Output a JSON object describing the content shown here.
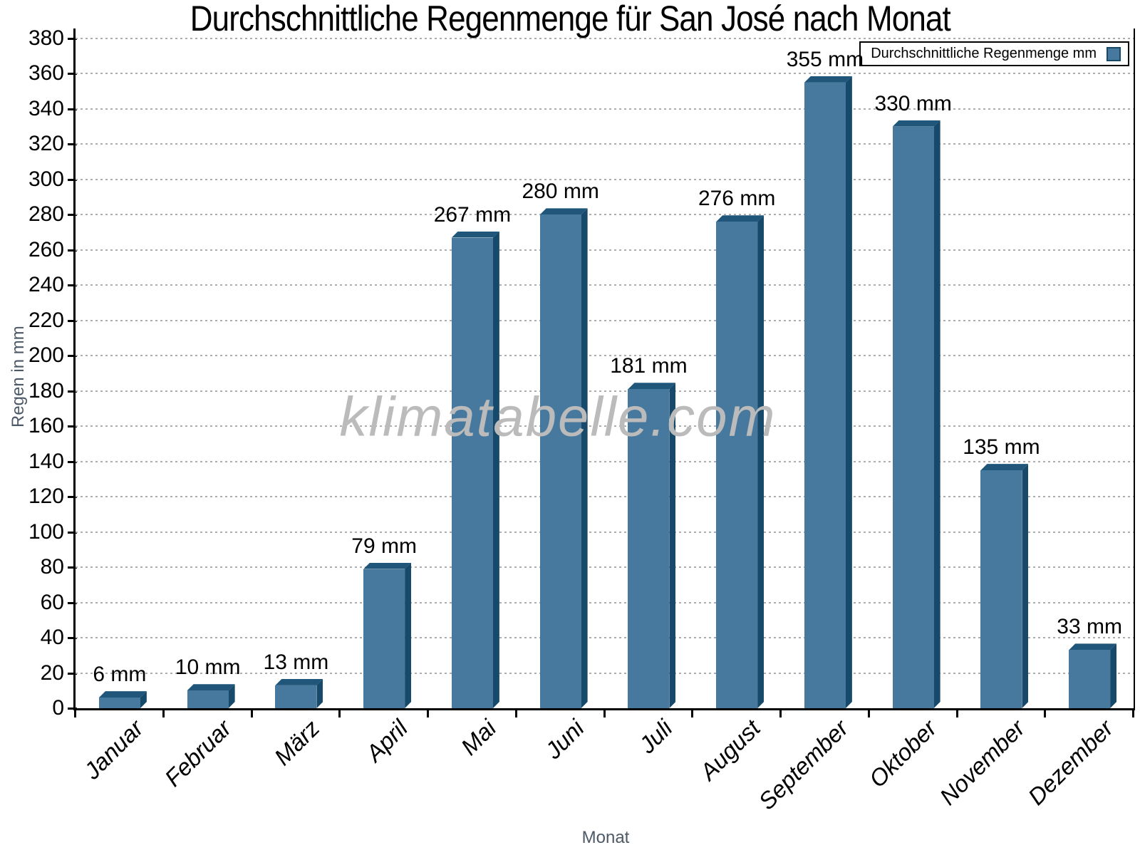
{
  "title": "Durchschnittliche Regenmenge für San José nach Monat",
  "watermark": "klimatabelle.com",
  "legend": {
    "label": "Durchschnittliche Regenmenge mm"
  },
  "chart_data": {
    "type": "bar",
    "title": "Durchschnittliche Regenmenge für San José nach Monat",
    "categories": [
      "Januar",
      "Februar",
      "März",
      "April",
      "Mai",
      "Juni",
      "Juli",
      "August",
      "September",
      "Oktober",
      "November",
      "Dezember"
    ],
    "values": [
      6,
      10,
      13,
      79,
      267,
      280,
      181,
      276,
      355,
      330,
      135,
      33
    ],
    "value_labels": [
      "6 mm",
      "10 mm",
      "13 mm",
      "79 mm",
      "267 mm",
      "280 mm",
      "181 mm",
      "276 mm",
      "355 mm",
      "330 mm",
      "135 mm",
      "33 mm"
    ],
    "series_name": "Durchschnittliche Regenmenge mm",
    "xlabel": "Monat",
    "ylabel": "Regen in mm",
    "ylim": [
      0,
      380
    ],
    "y_ticks": [
      0,
      20,
      40,
      60,
      80,
      100,
      120,
      140,
      160,
      180,
      200,
      220,
      240,
      260,
      280,
      300,
      320,
      340,
      360,
      380
    ],
    "grid": "horizontal-dashed",
    "legend_position": "top-right",
    "bar_face_color": "#46799D",
    "bar_side_color": "#17496B",
    "bar_top_color": "#1F567A"
  },
  "colors": {
    "background": "#FFFFFF",
    "axis": "#000000",
    "grid": "#ADADAD",
    "muted_text": "#4D5966",
    "watermark": "#BBBBBB"
  }
}
